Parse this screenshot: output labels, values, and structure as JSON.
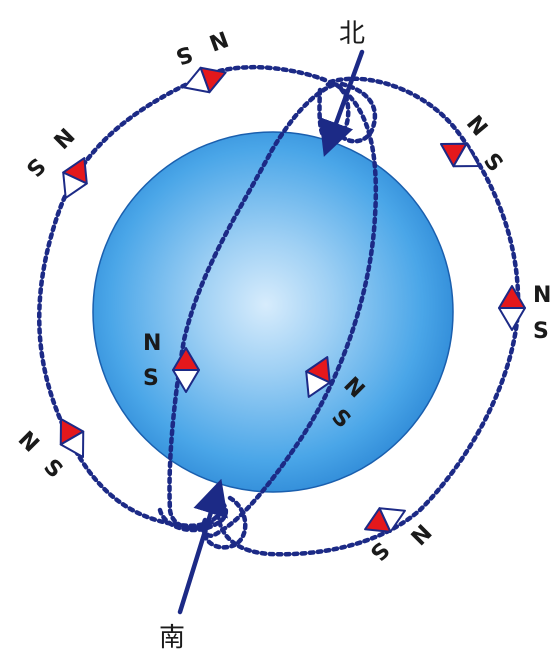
{
  "poles": {
    "north": "北",
    "south": "南"
  },
  "needle_labels": {
    "n": "N",
    "s": "S"
  },
  "colors": {
    "globe_light": "#cfe8fb",
    "globe_mid": "#5db0ea",
    "globe_dark": "#1f7fcf",
    "globe_edge": "#1565b4",
    "field_line": "#1c2a86",
    "axis": "#1c2a86",
    "needle_north": "#e4181c",
    "needle_south": "#ffffff",
    "needle_outline": "#1c2a86"
  },
  "icons": {
    "compass_needle": "compass-needle-icon",
    "axis_arrow": "arrow-up-icon"
  }
}
